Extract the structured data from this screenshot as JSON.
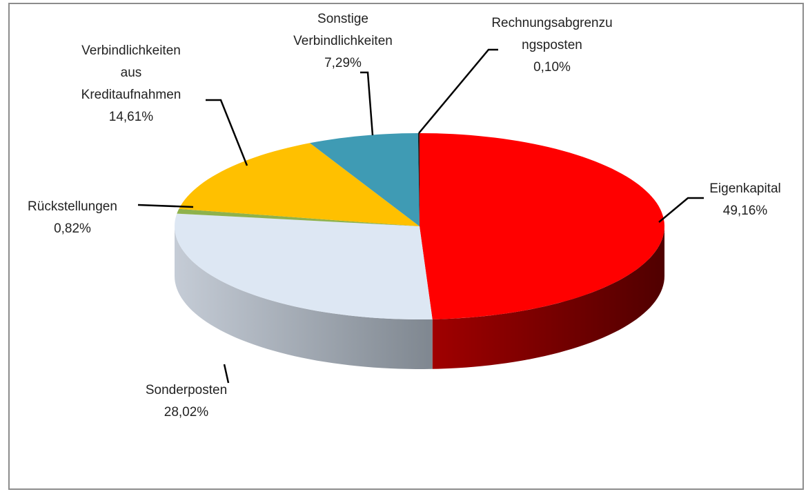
{
  "chart_data": {
    "type": "pie3d",
    "categories": [
      "Eigenkapital",
      "Sonderposten",
      "Rückstellungen",
      "Verbindlichkeiten aus Kreditaufnahmen",
      "Sonstige Verbindlichkeiten",
      "Rechnungsabgrenzungsposten"
    ],
    "values": [
      49.16,
      28.02,
      0.82,
      14.61,
      7.29,
      0.1
    ],
    "value_labels": [
      "49,16%",
      "28,02%",
      "0,82%",
      "14,61%",
      "7,29%",
      "0,10%"
    ],
    "colors": [
      "#ff0000",
      "#dde7f3",
      "#8fb24c",
      "#ffc000",
      "#3f9bb4",
      "#1f1f1f"
    ]
  }
}
